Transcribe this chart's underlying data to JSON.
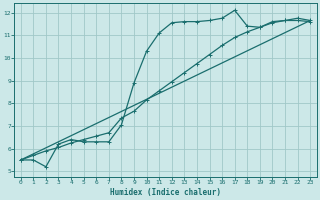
{
  "xlabel": "Humidex (Indice chaleur)",
  "bg_color": "#cce8e8",
  "grid_color": "#a0c8c8",
  "line_color": "#1a6e6e",
  "xlim": [
    -0.5,
    23.5
  ],
  "ylim": [
    4.75,
    12.4
  ],
  "xticks": [
    0,
    1,
    2,
    3,
    4,
    5,
    6,
    7,
    8,
    9,
    10,
    11,
    12,
    13,
    14,
    15,
    16,
    17,
    18,
    19,
    20,
    21,
    22,
    23
  ],
  "yticks": [
    5,
    6,
    7,
    8,
    9,
    10,
    11,
    12
  ],
  "curve1_x": [
    0,
    1,
    2,
    3,
    4,
    5,
    6,
    7,
    8,
    9,
    10,
    11,
    12,
    13,
    14,
    15,
    16,
    17,
    18,
    19,
    20,
    21,
    22,
    23
  ],
  "curve1_y": [
    5.5,
    5.5,
    5.2,
    6.2,
    6.4,
    6.3,
    6.3,
    6.3,
    7.05,
    8.9,
    10.3,
    11.1,
    11.55,
    11.6,
    11.6,
    11.65,
    11.75,
    12.1,
    11.4,
    11.35,
    11.6,
    11.65,
    11.65,
    11.6
  ],
  "curve2_x": [
    0,
    1,
    2,
    3,
    4,
    5,
    6,
    7,
    8,
    9,
    10,
    11,
    12,
    13,
    14,
    15,
    16,
    17,
    18,
    19,
    20,
    21,
    22,
    23
  ],
  "curve2_y": [
    5.5,
    5.7,
    5.9,
    6.05,
    6.25,
    6.4,
    6.55,
    6.7,
    7.35,
    7.65,
    8.15,
    8.55,
    8.95,
    9.35,
    9.75,
    10.15,
    10.55,
    10.9,
    11.15,
    11.35,
    11.55,
    11.65,
    11.75,
    11.65
  ],
  "curve3_x": [
    0,
    23
  ],
  "curve3_y": [
    5.5,
    11.65
  ]
}
